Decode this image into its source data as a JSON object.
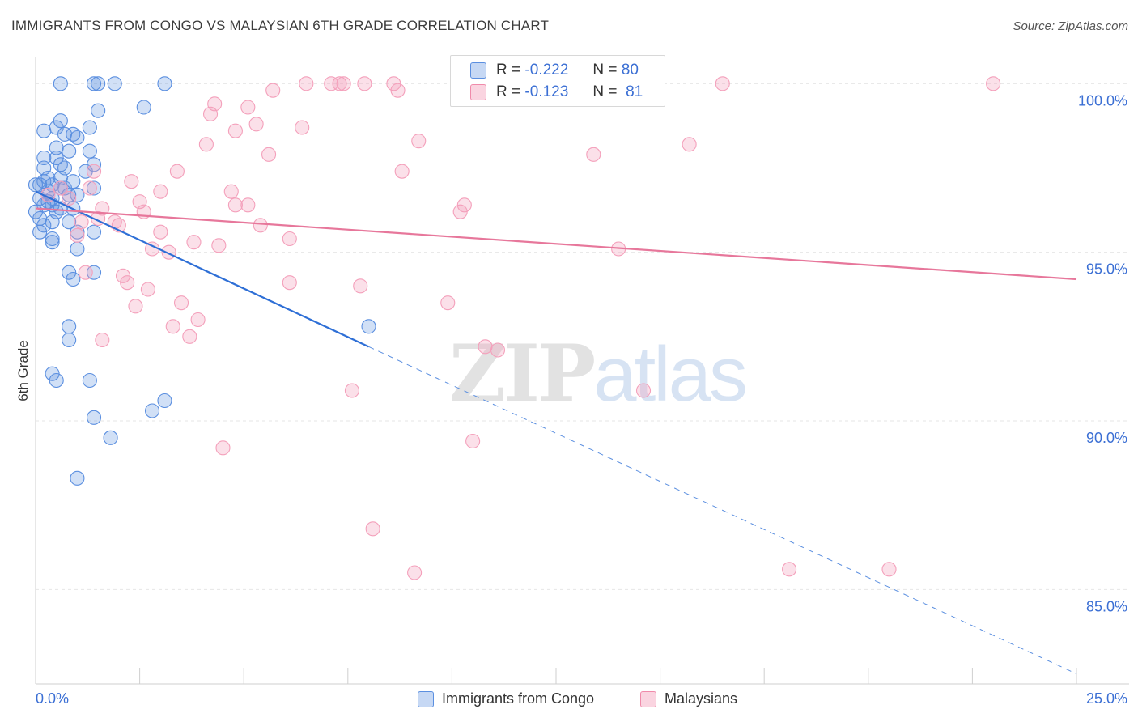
{
  "header": {
    "title": "IMMIGRANTS FROM CONGO VS MALAYSIAN 6TH GRADE CORRELATION CHART",
    "source": "Source: ZipAtlas.com"
  },
  "watermark": {
    "zip": "ZIP",
    "atlas": "atlas"
  },
  "correlation_legend": {
    "rows": [
      {
        "r_label": "R =",
        "r_value": "-0.222",
        "n_label": "N =",
        "n_value": "80",
        "color": "#5b8fe0"
      },
      {
        "r_label": "R =",
        "r_value": "-0.123",
        "n_label": "N =",
        "n_value": "81",
        "color": "#f08aaa"
      }
    ]
  },
  "chart_data": {
    "type": "scatter",
    "title": "IMMIGRANTS FROM CONGO VS MALAYSIAN 6TH GRADE CORRELATION CHART",
    "xlabel": "",
    "ylabel": "6th Grade",
    "xlim": [
      0,
      25
    ],
    "ylim": [
      82.2,
      100.8
    ],
    "x_tick_labels": [
      "0.0%",
      "25.0%"
    ],
    "y_ticks": [
      85.0,
      90.0,
      95.0,
      100.0
    ],
    "y_tick_labels": [
      "85.0%",
      "90.0%",
      "95.0%",
      "100.0%"
    ],
    "grid": true,
    "legend_position": "bottom",
    "series": [
      {
        "name": "Immigrants from Congo",
        "color": "#5b8fe0",
        "stroke": "#4a7fd6",
        "trend": {
          "x": [
            0.0,
            8.0
          ],
          "y": [
            96.8,
            92.2
          ]
        },
        "trend_dashed": {
          "x": [
            8.0,
            25.0
          ],
          "y": [
            92.2,
            82.5
          ]
        },
        "points": [
          [
            0.6,
            100.0
          ],
          [
            1.4,
            100.0
          ],
          [
            1.5,
            100.0
          ],
          [
            1.9,
            100.0
          ],
          [
            3.1,
            100.0
          ],
          [
            1.5,
            99.2
          ],
          [
            2.6,
            99.3
          ],
          [
            0.6,
            98.9
          ],
          [
            0.5,
            98.7
          ],
          [
            0.7,
            98.5
          ],
          [
            0.9,
            98.5
          ],
          [
            1.3,
            98.7
          ],
          [
            0.2,
            98.6
          ],
          [
            1.0,
            98.4
          ],
          [
            0.5,
            98.1
          ],
          [
            0.8,
            98.0
          ],
          [
            1.3,
            98.0
          ],
          [
            0.2,
            97.8
          ],
          [
            0.5,
            97.8
          ],
          [
            0.6,
            97.6
          ],
          [
            1.4,
            97.6
          ],
          [
            0.2,
            97.5
          ],
          [
            0.7,
            97.5
          ],
          [
            1.2,
            97.4
          ],
          [
            0.3,
            97.2
          ],
          [
            0.6,
            97.2
          ],
          [
            0.4,
            97.0
          ],
          [
            0.9,
            97.1
          ],
          [
            0.1,
            97.0
          ],
          [
            0.3,
            96.8
          ],
          [
            0.6,
            96.9
          ],
          [
            0.7,
            96.9
          ],
          [
            1.4,
            96.9
          ],
          [
            0.1,
            96.6
          ],
          [
            0.4,
            96.6
          ],
          [
            0.8,
            96.7
          ],
          [
            1.0,
            96.7
          ],
          [
            0.2,
            96.4
          ],
          [
            0.4,
            96.4
          ],
          [
            0.6,
            96.3
          ],
          [
            0.0,
            96.2
          ],
          [
            0.5,
            96.2
          ],
          [
            0.9,
            96.3
          ],
          [
            0.1,
            96.0
          ],
          [
            0.4,
            95.9
          ],
          [
            0.2,
            95.8
          ],
          [
            0.8,
            95.9
          ],
          [
            0.1,
            95.6
          ],
          [
            1.0,
            95.6
          ],
          [
            1.4,
            95.6
          ],
          [
            0.4,
            95.4
          ],
          [
            0.4,
            95.3
          ],
          [
            1.0,
            95.1
          ],
          [
            0.8,
            94.4
          ],
          [
            0.9,
            94.2
          ],
          [
            1.4,
            94.4
          ],
          [
            0.8,
            92.8
          ],
          [
            0.8,
            92.4
          ],
          [
            8.0,
            92.8
          ],
          [
            0.4,
            91.4
          ],
          [
            0.5,
            91.2
          ],
          [
            1.3,
            91.2
          ],
          [
            3.1,
            90.6
          ],
          [
            1.4,
            90.1
          ],
          [
            2.8,
            90.3
          ],
          [
            1.8,
            89.5
          ],
          [
            1.0,
            88.3
          ],
          [
            0.0,
            97.0
          ],
          [
            0.2,
            97.1
          ],
          [
            0.3,
            96.5
          ]
        ]
      },
      {
        "name": "Malaysians",
        "color": "#f4a0bb",
        "stroke": "#e7779b",
        "trend": {
          "x": [
            0.0,
            25.0
          ],
          "y": [
            96.3,
            94.2
          ]
        },
        "points": [
          [
            6.5,
            100.0
          ],
          [
            7.1,
            100.0
          ],
          [
            7.3,
            100.0
          ],
          [
            7.4,
            100.0
          ],
          [
            7.9,
            100.0
          ],
          [
            8.6,
            100.0
          ],
          [
            14.3,
            100.0
          ],
          [
            16.5,
            100.0
          ],
          [
            23.0,
            100.0
          ],
          [
            8.7,
            99.8
          ],
          [
            5.7,
            99.8
          ],
          [
            4.3,
            99.4
          ],
          [
            5.1,
            99.3
          ],
          [
            4.2,
            99.1
          ],
          [
            5.3,
            98.8
          ],
          [
            6.4,
            98.7
          ],
          [
            4.8,
            98.6
          ],
          [
            9.2,
            98.3
          ],
          [
            4.1,
            98.2
          ],
          [
            15.7,
            98.2
          ],
          [
            5.6,
            97.9
          ],
          [
            13.4,
            97.9
          ],
          [
            3.4,
            97.4
          ],
          [
            8.8,
            97.4
          ],
          [
            1.4,
            97.4
          ],
          [
            2.3,
            97.1
          ],
          [
            3.0,
            96.8
          ],
          [
            0.6,
            96.9
          ],
          [
            4.7,
            96.8
          ],
          [
            2.5,
            96.5
          ],
          [
            4.8,
            96.4
          ],
          [
            5.1,
            96.4
          ],
          [
            10.3,
            96.4
          ],
          [
            1.6,
            96.3
          ],
          [
            10.2,
            96.2
          ],
          [
            2.6,
            96.2
          ],
          [
            1.5,
            96.0
          ],
          [
            1.9,
            95.9
          ],
          [
            2.0,
            95.8
          ],
          [
            5.4,
            95.8
          ],
          [
            3.0,
            95.6
          ],
          [
            1.0,
            95.5
          ],
          [
            6.1,
            95.4
          ],
          [
            3.8,
            95.3
          ],
          [
            4.4,
            95.2
          ],
          [
            2.8,
            95.1
          ],
          [
            3.2,
            95.0
          ],
          [
            14.0,
            95.1
          ],
          [
            2.1,
            94.3
          ],
          [
            2.2,
            94.1
          ],
          [
            1.2,
            94.4
          ],
          [
            6.1,
            94.1
          ],
          [
            7.8,
            94.0
          ],
          [
            2.7,
            93.9
          ],
          [
            9.9,
            93.5
          ],
          [
            3.5,
            93.5
          ],
          [
            2.4,
            93.4
          ],
          [
            3.9,
            93.0
          ],
          [
            3.3,
            92.8
          ],
          [
            3.7,
            92.5
          ],
          [
            1.6,
            92.4
          ],
          [
            10.8,
            92.2
          ],
          [
            11.1,
            92.1
          ],
          [
            7.6,
            90.9
          ],
          [
            14.6,
            90.9
          ],
          [
            4.5,
            89.2
          ],
          [
            10.5,
            89.4
          ],
          [
            8.1,
            86.8
          ],
          [
            9.1,
            85.5
          ],
          [
            18.1,
            85.6
          ],
          [
            20.5,
            85.6
          ],
          [
            0.3,
            96.7
          ],
          [
            0.8,
            96.6
          ],
          [
            1.3,
            96.9
          ],
          [
            1.1,
            95.9
          ]
        ]
      }
    ]
  }
}
